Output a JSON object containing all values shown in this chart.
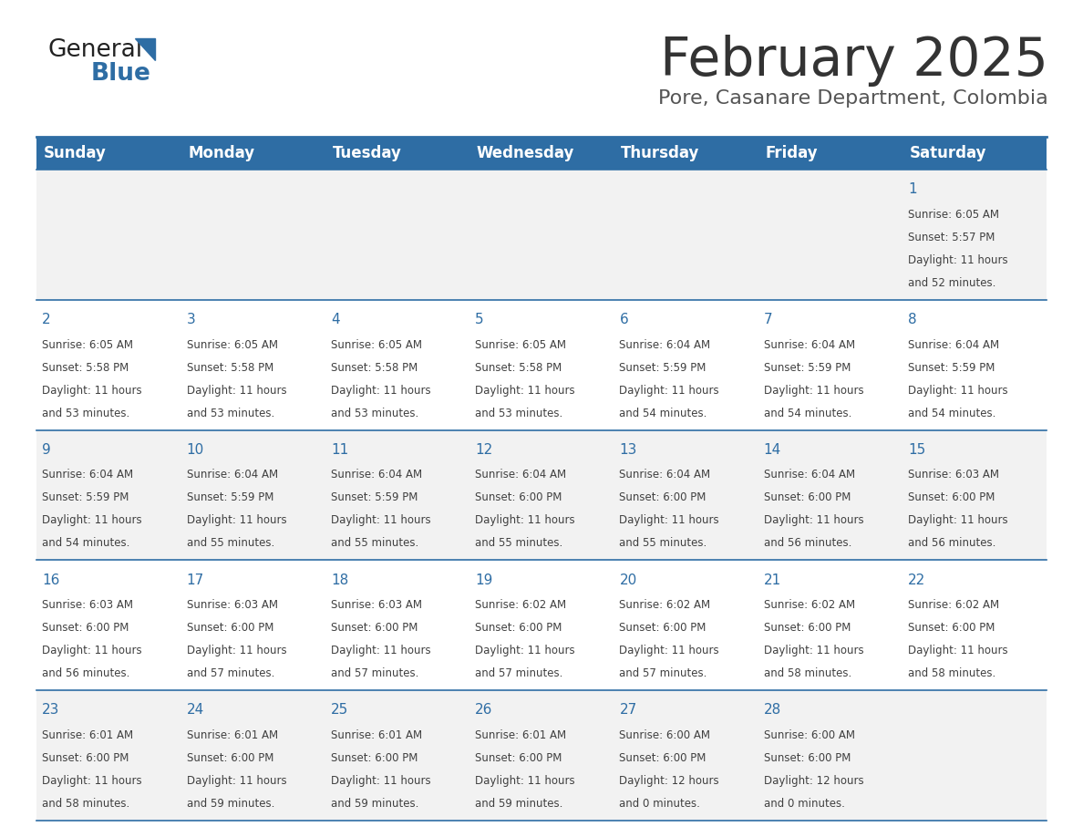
{
  "title": "February 2025",
  "subtitle": "Pore, Casanare Department, Colombia",
  "header_bg": "#2E6DA4",
  "header_text_color": "#FFFFFF",
  "cell_bg_odd": "#F2F2F2",
  "cell_bg_even": "#FFFFFF",
  "day_number_color": "#2E6DA4",
  "text_color": "#404040",
  "border_color": "#2E6DA4",
  "days_of_week": [
    "Sunday",
    "Monday",
    "Tuesday",
    "Wednesday",
    "Thursday",
    "Friday",
    "Saturday"
  ],
  "calendar_data": [
    [
      null,
      null,
      null,
      null,
      null,
      null,
      {
        "day": "1",
        "sunrise": "6:05 AM",
        "sunset": "5:57 PM",
        "daylight1": "11 hours",
        "daylight2": "and 52 minutes."
      }
    ],
    [
      {
        "day": "2",
        "sunrise": "6:05 AM",
        "sunset": "5:58 PM",
        "daylight1": "11 hours",
        "daylight2": "and 53 minutes."
      },
      {
        "day": "3",
        "sunrise": "6:05 AM",
        "sunset": "5:58 PM",
        "daylight1": "11 hours",
        "daylight2": "and 53 minutes."
      },
      {
        "day": "4",
        "sunrise": "6:05 AM",
        "sunset": "5:58 PM",
        "daylight1": "11 hours",
        "daylight2": "and 53 minutes."
      },
      {
        "day": "5",
        "sunrise": "6:05 AM",
        "sunset": "5:58 PM",
        "daylight1": "11 hours",
        "daylight2": "and 53 minutes."
      },
      {
        "day": "6",
        "sunrise": "6:04 AM",
        "sunset": "5:59 PM",
        "daylight1": "11 hours",
        "daylight2": "and 54 minutes."
      },
      {
        "day": "7",
        "sunrise": "6:04 AM",
        "sunset": "5:59 PM",
        "daylight1": "11 hours",
        "daylight2": "and 54 minutes."
      },
      {
        "day": "8",
        "sunrise": "6:04 AM",
        "sunset": "5:59 PM",
        "daylight1": "11 hours",
        "daylight2": "and 54 minutes."
      }
    ],
    [
      {
        "day": "9",
        "sunrise": "6:04 AM",
        "sunset": "5:59 PM",
        "daylight1": "11 hours",
        "daylight2": "and 54 minutes."
      },
      {
        "day": "10",
        "sunrise": "6:04 AM",
        "sunset": "5:59 PM",
        "daylight1": "11 hours",
        "daylight2": "and 55 minutes."
      },
      {
        "day": "11",
        "sunrise": "6:04 AM",
        "sunset": "5:59 PM",
        "daylight1": "11 hours",
        "daylight2": "and 55 minutes."
      },
      {
        "day": "12",
        "sunrise": "6:04 AM",
        "sunset": "6:00 PM",
        "daylight1": "11 hours",
        "daylight2": "and 55 minutes."
      },
      {
        "day": "13",
        "sunrise": "6:04 AM",
        "sunset": "6:00 PM",
        "daylight1": "11 hours",
        "daylight2": "and 55 minutes."
      },
      {
        "day": "14",
        "sunrise": "6:04 AM",
        "sunset": "6:00 PM",
        "daylight1": "11 hours",
        "daylight2": "and 56 minutes."
      },
      {
        "day": "15",
        "sunrise": "6:03 AM",
        "sunset": "6:00 PM",
        "daylight1": "11 hours",
        "daylight2": "and 56 minutes."
      }
    ],
    [
      {
        "day": "16",
        "sunrise": "6:03 AM",
        "sunset": "6:00 PM",
        "daylight1": "11 hours",
        "daylight2": "and 56 minutes."
      },
      {
        "day": "17",
        "sunrise": "6:03 AM",
        "sunset": "6:00 PM",
        "daylight1": "11 hours",
        "daylight2": "and 57 minutes."
      },
      {
        "day": "18",
        "sunrise": "6:03 AM",
        "sunset": "6:00 PM",
        "daylight1": "11 hours",
        "daylight2": "and 57 minutes."
      },
      {
        "day": "19",
        "sunrise": "6:02 AM",
        "sunset": "6:00 PM",
        "daylight1": "11 hours",
        "daylight2": "and 57 minutes."
      },
      {
        "day": "20",
        "sunrise": "6:02 AM",
        "sunset": "6:00 PM",
        "daylight1": "11 hours",
        "daylight2": "and 57 minutes."
      },
      {
        "day": "21",
        "sunrise": "6:02 AM",
        "sunset": "6:00 PM",
        "daylight1": "11 hours",
        "daylight2": "and 58 minutes."
      },
      {
        "day": "22",
        "sunrise": "6:02 AM",
        "sunset": "6:00 PM",
        "daylight1": "11 hours",
        "daylight2": "and 58 minutes."
      }
    ],
    [
      {
        "day": "23",
        "sunrise": "6:01 AM",
        "sunset": "6:00 PM",
        "daylight1": "11 hours",
        "daylight2": "and 58 minutes."
      },
      {
        "day": "24",
        "sunrise": "6:01 AM",
        "sunset": "6:00 PM",
        "daylight1": "11 hours",
        "daylight2": "and 59 minutes."
      },
      {
        "day": "25",
        "sunrise": "6:01 AM",
        "sunset": "6:00 PM",
        "daylight1": "11 hours",
        "daylight2": "and 59 minutes."
      },
      {
        "day": "26",
        "sunrise": "6:01 AM",
        "sunset": "6:00 PM",
        "daylight1": "11 hours",
        "daylight2": "and 59 minutes."
      },
      {
        "day": "27",
        "sunrise": "6:00 AM",
        "sunset": "6:00 PM",
        "daylight1": "12 hours",
        "daylight2": "and 0 minutes."
      },
      {
        "day": "28",
        "sunrise": "6:00 AM",
        "sunset": "6:00 PM",
        "daylight1": "12 hours",
        "daylight2": "and 0 minutes."
      },
      null
    ]
  ]
}
